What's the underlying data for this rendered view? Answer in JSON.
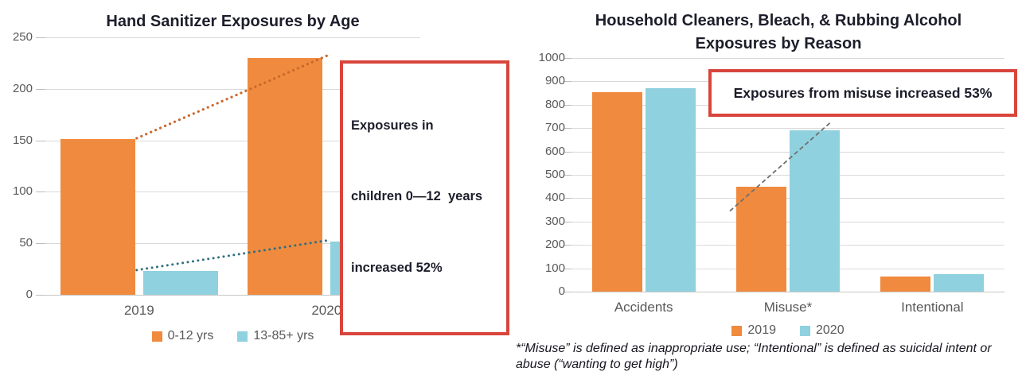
{
  "page": {
    "background": "#ffffff"
  },
  "colors": {
    "series_2019_orange": "#F08A3E",
    "series_2020_blue": "#8FD1DE",
    "annotation_border_red": "#D8453C",
    "axis_text_gray": "#595959",
    "gridline_gray": "#D9D9D9",
    "title_dark": "#1D1D2B",
    "trend_orange": "#C9682E",
    "trend_teal": "#2E6F7F",
    "trend_gray": "#6F6F6F"
  },
  "chart_data": [
    {
      "id": "hand-sanitizer-exposures-by-age",
      "type": "bar",
      "title": "Hand Sanitizer Exposures by Age",
      "xlabel": "",
      "ylabel": "",
      "categories": [
        "2019",
        "2020"
      ],
      "series": [
        {
          "name": "0-12 yrs",
          "color": "#F08A3E",
          "values": [
            151,
            230
          ]
        },
        {
          "name": "13-85+ yrs",
          "color": "#8FD1DE",
          "values": [
            23,
            52
          ]
        }
      ],
      "ylim": [
        0,
        250
      ],
      "ytick_step": 50,
      "grid": true,
      "legend_position": "bottom",
      "annotation": {
        "text": "Exposures in children 0—12 years increased 52%",
        "lines": [
          "Exposures in",
          "children 0—12  years",
          "increased 52%"
        ],
        "border_color": "#D8453C"
      },
      "trendlines": [
        {
          "color": "#C9682E",
          "style": "dot",
          "width": 3.2,
          "from": {
            "cat": 0,
            "series": 0,
            "edge": "right",
            "dx": 2,
            "value": 152
          },
          "to": {
            "cat": 1,
            "series": 0,
            "edge": "right",
            "dx": 8,
            "value": 233
          }
        },
        {
          "color": "#2E6F7F",
          "style": "dot",
          "width": 3,
          "from": {
            "cat": 0,
            "series": 1,
            "edge": "left",
            "dx": -8,
            "value": 24
          },
          "to": {
            "cat": 1,
            "series": 1,
            "edge": "left",
            "dx": -2,
            "value": 53
          }
        }
      ]
    },
    {
      "id": "household-cleaners-exposures-by-reason",
      "type": "bar",
      "title": "Household Cleaners, Bleach, & Rubbing Alcohol Exposures by Reason",
      "title_lines": [
        "Household Cleaners, Bleach, & Rubbing Alcohol",
        "Exposures by Reason"
      ],
      "xlabel": "",
      "ylabel": "",
      "categories": [
        "Accidents",
        "Misuse*",
        "Intentional"
      ],
      "series": [
        {
          "name": "2019",
          "color": "#F08A3E",
          "values": [
            855,
            450,
            65
          ]
        },
        {
          "name": "2020",
          "color": "#8FD1DE",
          "values": [
            870,
            690,
            75
          ]
        }
      ],
      "ylim": [
        0,
        1000
      ],
      "ytick_step": 100,
      "grid": true,
      "legend_position": "bottom",
      "annotation": {
        "text": "Exposures from misuse increased 53%",
        "lines": [
          "Exposures from misuse increased 53%"
        ],
        "border_color": "#D8453C"
      },
      "footnote": "*“Misuse” is defined as inappropriate use; “Intentional” is defined as suicidal intent or abuse (“wanting to get high”)",
      "trendlines": [
        {
          "color": "#6F6F6F",
          "style": "dash",
          "width": 1.8,
          "from": {
            "cat": 1,
            "series": 0,
            "edge": "left",
            "dx": -8,
            "value": 345
          },
          "to": {
            "cat": 1,
            "series": 1,
            "edge": "right",
            "dx": -12,
            "value": 723
          }
        }
      ]
    }
  ]
}
